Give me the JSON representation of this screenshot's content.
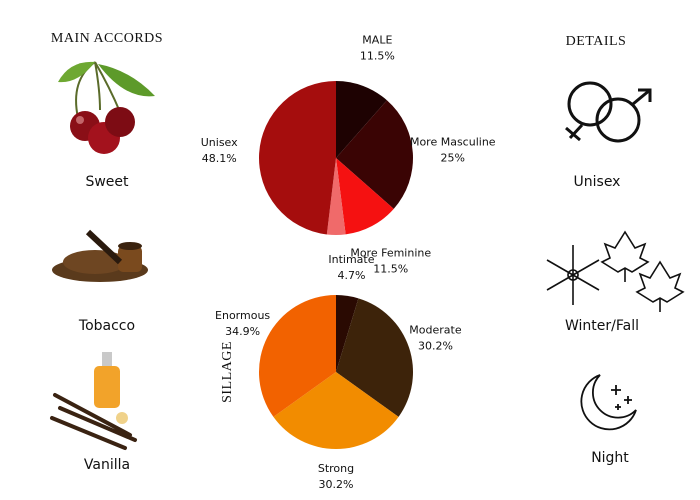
{
  "accords": {
    "title": "MAIN ACCORDS",
    "items": [
      "Sweet",
      "Tobacco",
      "Vanilla"
    ]
  },
  "details": {
    "title": "DETAILS",
    "items": [
      "Unisex",
      "Winter/Fall",
      "Night"
    ]
  },
  "chart_data": [
    {
      "type": "pie",
      "categories": [
        "MALE",
        "More Masculine",
        "More Feminine",
        null,
        "Unisex"
      ],
      "values": [
        11.5,
        25,
        11.5,
        3.9,
        48.1
      ],
      "value_labels": [
        "11.5%",
        "25%",
        "11.5%",
        null,
        "48.1%"
      ],
      "colors": [
        "#1e0202",
        "#3a0404",
        "#f51111",
        "#f06a6a",
        "#a50d0d"
      ]
    },
    {
      "type": "pie",
      "title": "SILLAGE",
      "categories": [
        "Intimate",
        "Moderate",
        "Strong",
        "Enormous"
      ],
      "values": [
        4.7,
        30.2,
        30.2,
        34.9
      ],
      "value_labels": [
        "4.7%",
        "30.2%",
        "30.2%",
        "34.9%"
      ],
      "colors": [
        "#2a0a02",
        "#3d230a",
        "#f28c00",
        "#f26200"
      ]
    }
  ]
}
